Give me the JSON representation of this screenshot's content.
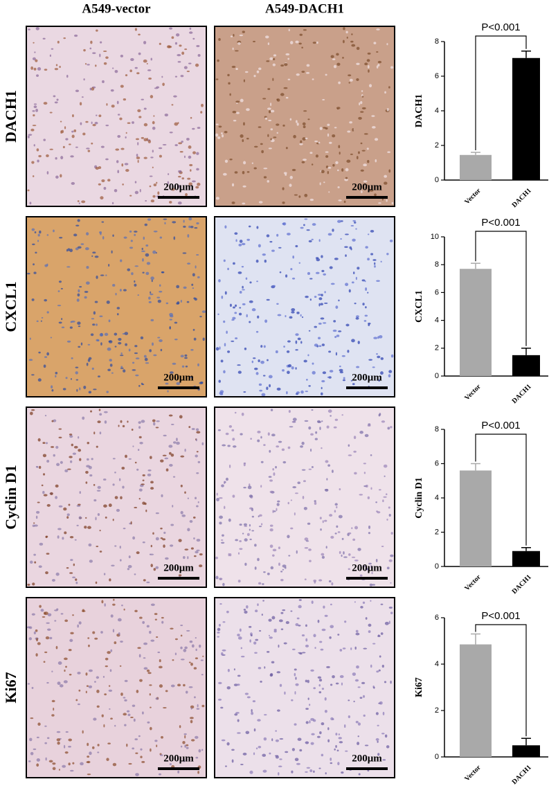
{
  "column_headers": [
    "A549-vector",
    "A549-DACH1"
  ],
  "panels": [
    {
      "label": "DACH1",
      "scale_bars": [
        "200μm",
        "200μm"
      ]
    },
    {
      "label": "CXCL1",
      "scale_bars": [
        "200μm",
        "200μm"
      ]
    },
    {
      "label": "Cyclin D1",
      "scale_bars": [
        "200μm",
        "200μm"
      ]
    },
    {
      "label": "Ki67",
      "scale_bars": [
        "200μm",
        "200μm"
      ]
    }
  ],
  "chart_data": [
    {
      "type": "bar",
      "ylabel": "DACH1",
      "annotation": "P<0.001",
      "categories": [
        "Vector",
        "DACH1"
      ],
      "values": [
        1.45,
        7.05
      ],
      "errors": [
        0.15,
        0.4
      ],
      "colors": [
        "#a9a9a9",
        "#000000"
      ],
      "ylim": [
        0,
        8
      ],
      "yticks": [
        0,
        2,
        4,
        6,
        8
      ]
    },
    {
      "type": "bar",
      "ylabel": "CXCL1",
      "annotation": "P<0.001",
      "categories": [
        "Vector",
        "DACH1"
      ],
      "values": [
        7.7,
        1.5
      ],
      "errors": [
        0.4,
        0.5
      ],
      "colors": [
        "#a9a9a9",
        "#000000"
      ],
      "ylim": [
        0,
        10
      ],
      "yticks": [
        0,
        2,
        4,
        6,
        8,
        10
      ]
    },
    {
      "type": "bar",
      "ylabel": "Cyclin D1",
      "annotation": "P<0.001",
      "categories": [
        "Vector",
        "DACH1"
      ],
      "values": [
        5.6,
        0.9
      ],
      "errors": [
        0.4,
        0.2
      ],
      "colors": [
        "#a9a9a9",
        "#000000"
      ],
      "ylim": [
        0,
        8
      ],
      "yticks": [
        0,
        2,
        4,
        6,
        8
      ]
    },
    {
      "type": "bar",
      "ylabel": "Ki67",
      "annotation": "P<0.001",
      "categories": [
        "Vector",
        "DACH1"
      ],
      "values": [
        4.85,
        0.5
      ],
      "errors": [
        0.45,
        0.3
      ],
      "colors": [
        "#a9a9a9",
        "#000000"
      ],
      "ylim": [
        0,
        6
      ],
      "yticks": [
        0,
        2,
        4,
        6
      ]
    }
  ]
}
